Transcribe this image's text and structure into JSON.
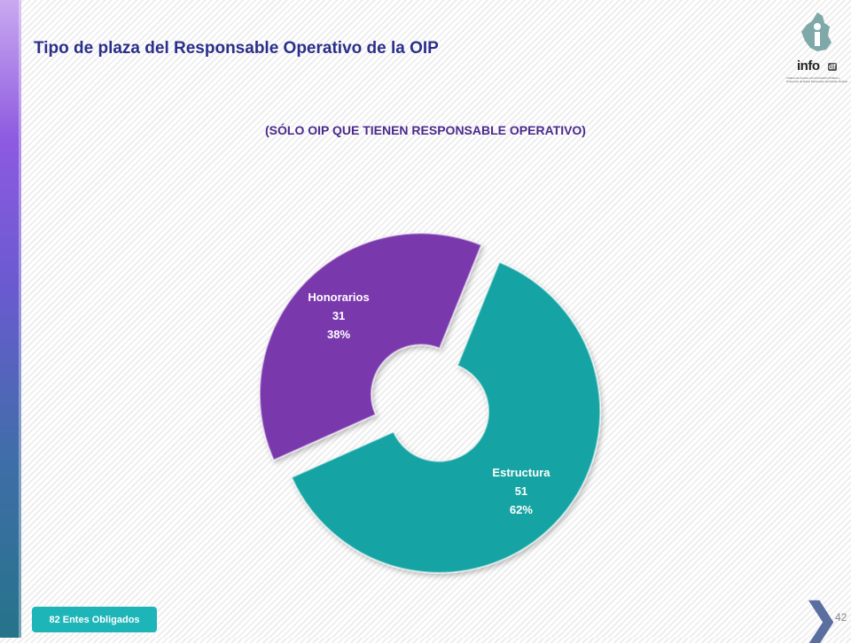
{
  "slide": {
    "title": "Tipo de plaza del Responsable Operativo de la OIP",
    "page_number": "42",
    "footer_badge": "82 Entes Obligados"
  },
  "logo": {
    "word": "info",
    "suffix": "df",
    "caption": "Instituto de Acceso a la Información Pública y Protección de Datos Personales del Distrito Federal"
  },
  "chart_data": {
    "type": "pie",
    "title": "(SÓLO OIP QUE TIENEN RESPONSABLE OPERATIVO)",
    "style": "doughnut, exploded",
    "slices": [
      {
        "name": "Estructura",
        "value": 51,
        "percent": "62%",
        "color": "#13a3a3"
      },
      {
        "name": "Honorarios",
        "value": 31,
        "percent": "38%",
        "color": "#7a37ad"
      }
    ],
    "legend": "none"
  }
}
